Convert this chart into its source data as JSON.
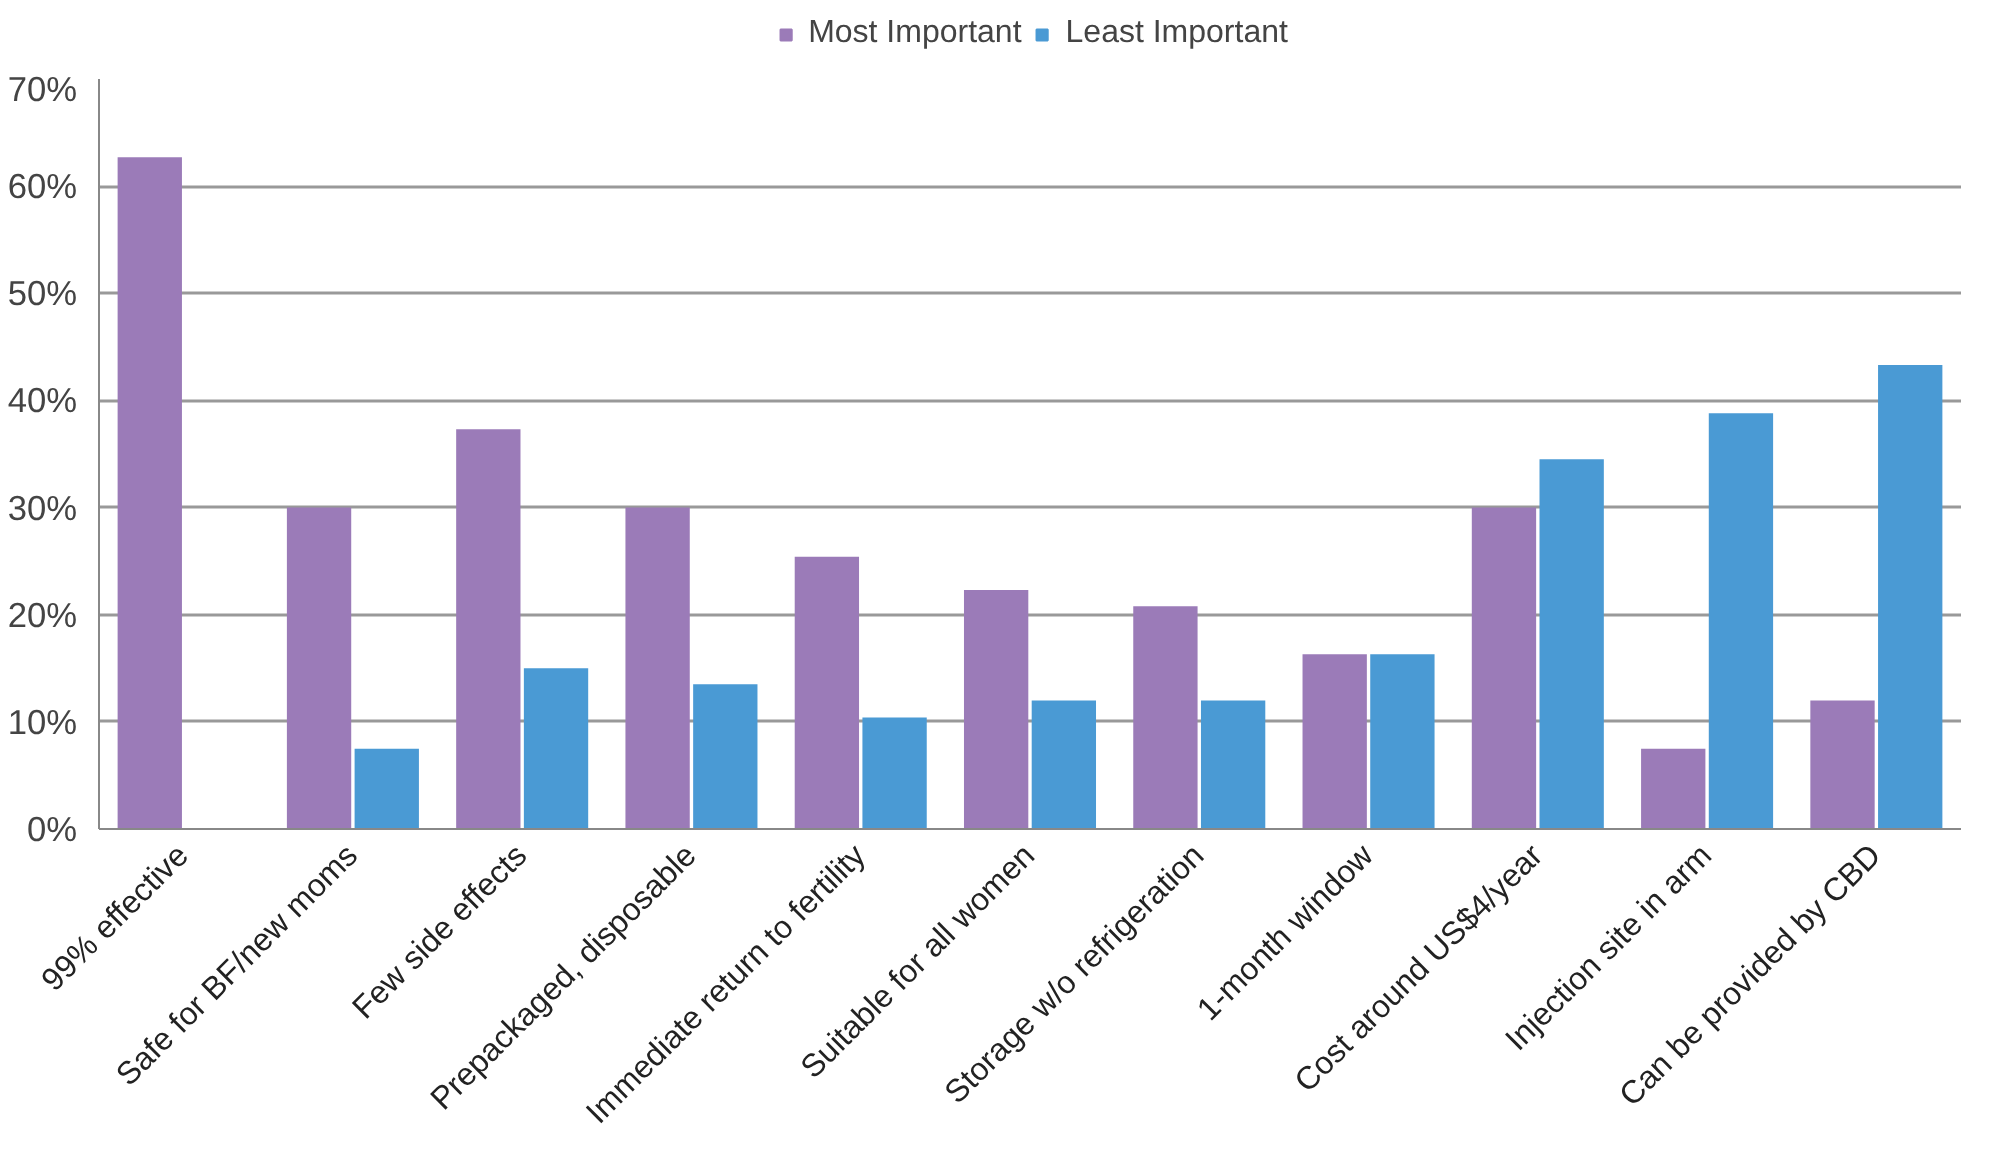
{
  "chart_data": {
    "type": "bar",
    "categories": [
      "99% effective",
      "Safe for BF/new moms",
      "Few side effects",
      "Prepackaged, disposable",
      "Immediate return to fertility",
      "Suitable for all women",
      "Storage w/o refrigeration",
      "1-month window",
      "Cost around US$4/year",
      "Injection site in arm",
      "Can be provided by CBD"
    ],
    "series": [
      {
        "name": "Most Important",
        "color": "#9b7bb8",
        "values": [
          62.7,
          30,
          37.3,
          30,
          25.4,
          22.3,
          20.8,
          16.3,
          30,
          7.5,
          12
        ]
      },
      {
        "name": "Least Important",
        "color": "#4a9ad4",
        "values": [
          null,
          7.5,
          15,
          13.5,
          10.4,
          12,
          12,
          16.3,
          34.5,
          38.8,
          43.3
        ]
      }
    ],
    "ylim": [
      0,
      70
    ],
    "yticks": [
      {
        "value": 0,
        "label": "0%"
      },
      {
        "value": 10,
        "label": "10%"
      },
      {
        "value": 20,
        "label": "20%"
      },
      {
        "value": 30,
        "label": "30%"
      },
      {
        "value": 40,
        "label": "40%"
      },
      {
        "value": 50,
        "label": "50%"
      },
      {
        "value": 60,
        "label": "60%"
      },
      {
        "value": 70,
        "label": "70%"
      }
    ],
    "grid": "y",
    "legend": "top"
  }
}
